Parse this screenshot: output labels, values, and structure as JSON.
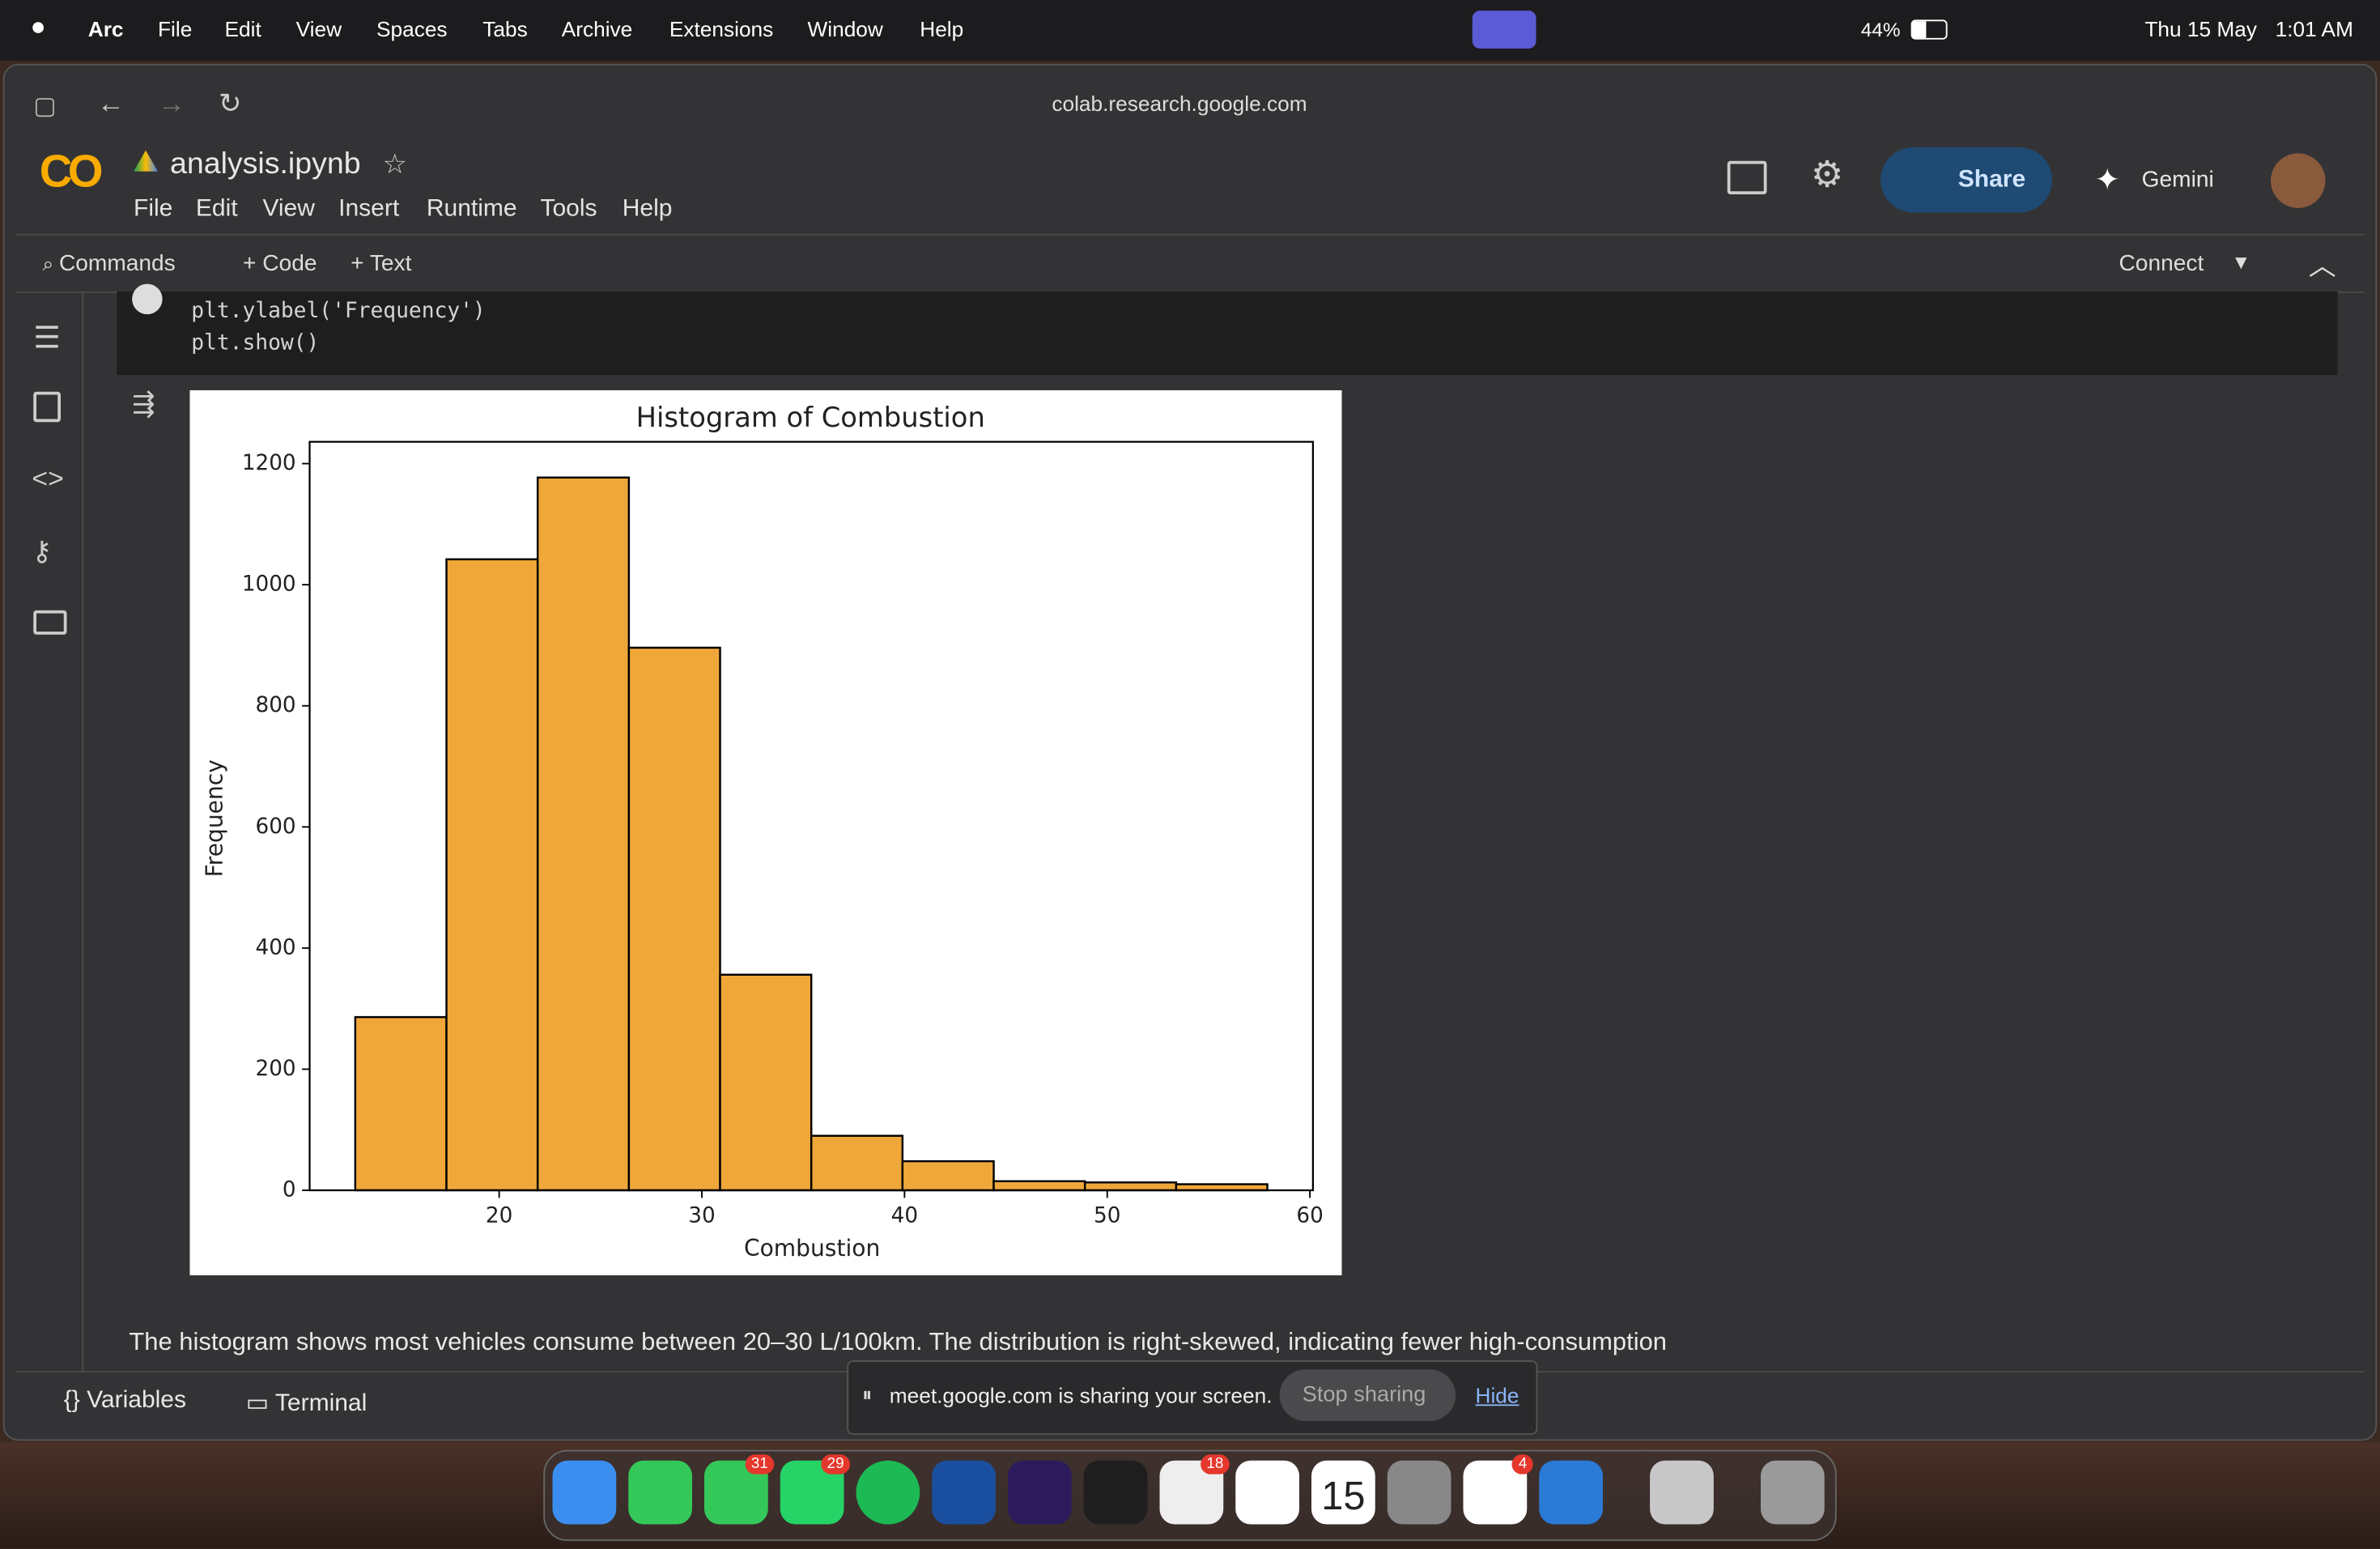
{
  "menu_bar": {
    "app": "Arc",
    "items": [
      "File",
      "Edit",
      "View",
      "Spaces",
      "Tabs",
      "Archive",
      "Extensions",
      "Window",
      "Help"
    ],
    "battery": "44%",
    "date": "Thu 15 May",
    "time": "1:01 AM"
  },
  "browser": {
    "url": "colab.research.google.com"
  },
  "colab": {
    "logo": "CO",
    "notebook": "analysis.ipynb",
    "menu": [
      "File",
      "Edit",
      "View",
      "Insert",
      "Runtime",
      "Tools",
      "Help"
    ],
    "share": "Share",
    "gemini": "Gemini",
    "toolbar": [
      "Commands",
      "+ Code",
      "+ Text"
    ],
    "connect": "Connect"
  },
  "code_cell": {
    "lines": [
      "plt.ylabel('Frequency')",
      "plt.show()"
    ]
  },
  "chart_data": {
    "type": "histogram",
    "title": "Histogram of Combustion",
    "x_label": "Combustion",
    "y_label": "Frequency",
    "bins": [
      12.9,
      17.4,
      21.9,
      26.4,
      30.9,
      35.4,
      39.9,
      44.4,
      48.9,
      53.4,
      57.9
    ],
    "values": [
      286,
      1042,
      1177,
      896,
      356,
      90,
      48,
      15,
      13,
      10
    ],
    "color": "#f0a73a",
    "edgecolor": "#000000",
    "xlim": [
      10.65,
      60.15
    ],
    "xticks": [
      20,
      30,
      40,
      50,
      60
    ],
    "ylim": [
      0,
      1236
    ],
    "yticks": [
      0,
      200,
      400,
      600,
      800,
      1000,
      1200
    ],
    "grid": false
  },
  "text_cell": "The histogram shows most vehicles consume between 20–30 L/100km. The distribution is right-skewed, indicating fewer high-consumption",
  "bottom_bar": {
    "variables": "Variables",
    "terminal": "Terminal"
  },
  "screen_share": {
    "message": "meet.google.com is sharing your screen.",
    "stop": "Stop sharing",
    "hide": "Hide"
  },
  "dock": {
    "badges": [
      "31",
      "29",
      "18",
      "4"
    ],
    "calendar_day": "15"
  }
}
